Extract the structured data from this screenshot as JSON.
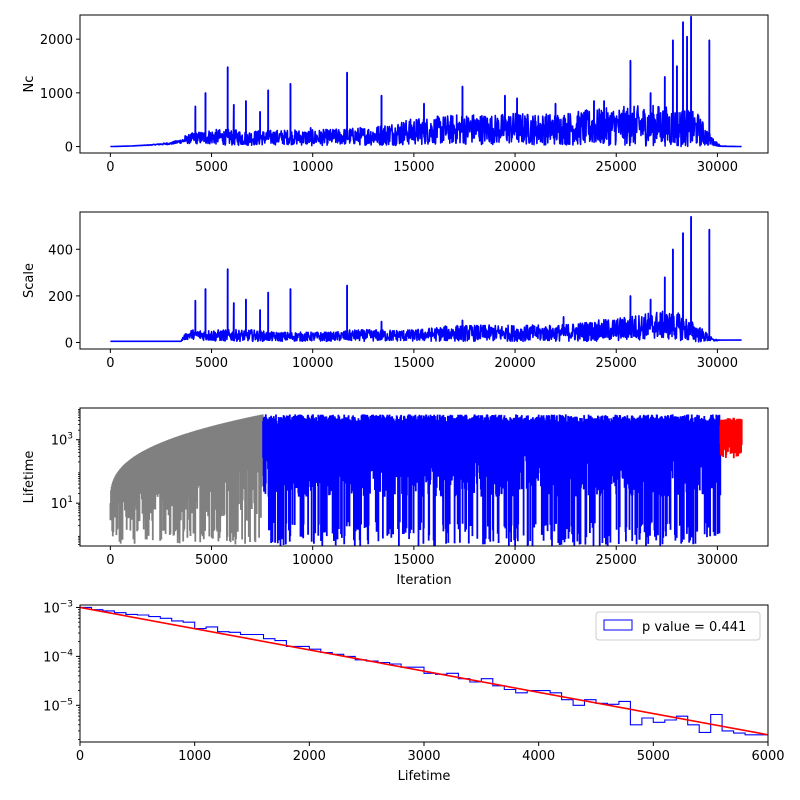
{
  "colors": {
    "series_main": "#0000ff",
    "series_burnin": "#808080",
    "series_tail": "#ff0000",
    "fit_line": "#ff0000",
    "frame": "#000000",
    "background": "#ffffff"
  },
  "chart_data": [
    {
      "id": "nc",
      "type": "line",
      "title": "",
      "xlabel": "",
      "ylabel": "Nc",
      "xlim": [
        -1500,
        32500
      ],
      "ylim": [
        -120,
        2450
      ],
      "xticks": [
        0,
        5000,
        10000,
        15000,
        20000,
        25000,
        30000
      ],
      "xtick_labels": [
        "0",
        "5000",
        "10000",
        "15000",
        "20000",
        "25000",
        "30000"
      ],
      "yticks": [
        0,
        1000,
        2000
      ],
      "ytick_labels": [
        "0",
        "1000",
        "2000"
      ],
      "grid": false,
      "series": [
        {
          "color": "#0000ff",
          "x": [
            0,
            1000,
            2000,
            3000,
            3500,
            4000,
            5000,
            6000,
            7000,
            8000,
            9000,
            10000,
            11000,
            12000,
            13000,
            14000,
            15000,
            16000,
            17000,
            18000,
            19000,
            20000,
            21000,
            22000,
            23000,
            24000,
            25000,
            26000,
            27000,
            28000,
            29000,
            29800,
            30200,
            31200
          ],
          "y": [
            0,
            10,
            30,
            60,
            100,
            150,
            180,
            170,
            160,
            170,
            175,
            160,
            180,
            190,
            200,
            240,
            280,
            300,
            320,
            330,
            320,
            340,
            320,
            330,
            340,
            360,
            380,
            380,
            400,
            350,
            320,
            80,
            5,
            0
          ],
          "noise_band": [
            0,
            0,
            5,
            20,
            40,
            100,
            140,
            150,
            140,
            140,
            140,
            150,
            150,
            160,
            180,
            220,
            250,
            260,
            280,
            290,
            280,
            300,
            290,
            300,
            320,
            340,
            360,
            380,
            380,
            360,
            320,
            60,
            5,
            0
          ]
        }
      ],
      "spikes": [
        {
          "x": 3700,
          "y": 200
        },
        {
          "x": 4200,
          "y": 750
        },
        {
          "x": 4700,
          "y": 1000
        },
        {
          "x": 5800,
          "y": 1480
        },
        {
          "x": 6100,
          "y": 780
        },
        {
          "x": 6700,
          "y": 850
        },
        {
          "x": 7400,
          "y": 650
        },
        {
          "x": 7800,
          "y": 1050
        },
        {
          "x": 8900,
          "y": 1170
        },
        {
          "x": 9900,
          "y": 350
        },
        {
          "x": 11700,
          "y": 1380
        },
        {
          "x": 13400,
          "y": 950
        },
        {
          "x": 15500,
          "y": 800
        },
        {
          "x": 17400,
          "y": 1120
        },
        {
          "x": 19500,
          "y": 950
        },
        {
          "x": 20100,
          "y": 900
        },
        {
          "x": 22000,
          "y": 800
        },
        {
          "x": 23900,
          "y": 850
        },
        {
          "x": 24400,
          "y": 850
        },
        {
          "x": 25700,
          "y": 1600
        },
        {
          "x": 26700,
          "y": 1000
        },
        {
          "x": 27400,
          "y": 1300
        },
        {
          "x": 27800,
          "y": 1980
        },
        {
          "x": 28000,
          "y": 1500
        },
        {
          "x": 28300,
          "y": 2320
        },
        {
          "x": 28500,
          "y": 2050
        },
        {
          "x": 28700,
          "y": 2420
        },
        {
          "x": 29600,
          "y": 1980
        }
      ]
    },
    {
      "id": "scale",
      "type": "line",
      "title": "",
      "xlabel": "",
      "ylabel": "Scale",
      "xlim": [
        -1500,
        32500
      ],
      "ylim": [
        -28,
        560
      ],
      "xticks": [
        0,
        5000,
        10000,
        15000,
        20000,
        25000,
        30000
      ],
      "xtick_labels": [
        "0",
        "5000",
        "10000",
        "15000",
        "20000",
        "25000",
        "30000"
      ],
      "yticks": [
        0,
        200,
        400
      ],
      "ytick_labels": [
        "0",
        "200",
        "400"
      ],
      "grid": false,
      "series": [
        {
          "color": "#0000ff",
          "x": [
            0,
            3500,
            3600,
            4000,
            5000,
            6000,
            7000,
            8000,
            9000,
            10000,
            11000,
            12000,
            13000,
            14000,
            15000,
            16000,
            17000,
            18000,
            19000,
            20000,
            21000,
            22000,
            23000,
            24000,
            25000,
            26000,
            27000,
            28000,
            29000,
            29800,
            30200,
            31200
          ],
          "y": [
            5,
            5,
            20,
            35,
            30,
            30,
            30,
            25,
            25,
            25,
            25,
            30,
            30,
            30,
            30,
            35,
            40,
            40,
            40,
            40,
            40,
            40,
            45,
            50,
            55,
            65,
            75,
            70,
            40,
            10,
            10,
            10
          ],
          "noise_band": [
            0,
            0,
            10,
            20,
            25,
            25,
            25,
            20,
            20,
            20,
            20,
            25,
            25,
            25,
            25,
            30,
            35,
            35,
            35,
            35,
            35,
            35,
            40,
            45,
            50,
            55,
            60,
            60,
            40,
            5,
            0,
            0
          ]
        }
      ],
      "spikes": [
        {
          "x": 4200,
          "y": 180
        },
        {
          "x": 4700,
          "y": 230
        },
        {
          "x": 5800,
          "y": 315
        },
        {
          "x": 6100,
          "y": 170
        },
        {
          "x": 6700,
          "y": 185
        },
        {
          "x": 7400,
          "y": 140
        },
        {
          "x": 7800,
          "y": 215
        },
        {
          "x": 8900,
          "y": 230
        },
        {
          "x": 11700,
          "y": 245
        },
        {
          "x": 13400,
          "y": 90
        },
        {
          "x": 17400,
          "y": 95
        },
        {
          "x": 22400,
          "y": 110
        },
        {
          "x": 25700,
          "y": 200
        },
        {
          "x": 26700,
          "y": 185
        },
        {
          "x": 27400,
          "y": 280
        },
        {
          "x": 27800,
          "y": 400
        },
        {
          "x": 28300,
          "y": 470
        },
        {
          "x": 28700,
          "y": 540
        },
        {
          "x": 29600,
          "y": 485
        }
      ]
    },
    {
      "id": "lifetime",
      "type": "line",
      "title": "",
      "xlabel": "Iteration",
      "ylabel": "Lifetime",
      "xlim": [
        -1500,
        32500
      ],
      "ylim_log10": [
        -0.35,
        4.0
      ],
      "yscale": "log",
      "xticks": [
        0,
        5000,
        10000,
        15000,
        20000,
        25000,
        30000
      ],
      "xtick_labels": [
        "0",
        "5000",
        "10000",
        "15000",
        "20000",
        "25000",
        "30000"
      ],
      "yticks_log10": [
        1,
        3
      ],
      "ytick_base": "10",
      "ytick_exponents": [
        "1",
        "3"
      ],
      "grid": false,
      "series": [
        {
          "color": "#808080",
          "segment": "burn-in",
          "x_start": 0,
          "x_end": 7550,
          "upper_log10_start": 1.0,
          "upper_log10_end": 3.8
        },
        {
          "color": "#0000ff",
          "segment": "main",
          "x_start": 7550,
          "x_end": 30150,
          "upper_log10": 3.8,
          "lower_log10": 0.0
        },
        {
          "color": "#ff0000",
          "segment": "tail",
          "x_start": 30150,
          "x_end": 31200,
          "upper_log10": 3.7,
          "lower_log10": 2.4
        }
      ]
    },
    {
      "id": "lifetime-hist",
      "type": "histogram",
      "title": "",
      "xlabel": "Lifetime",
      "ylabel": "",
      "xlim": [
        0,
        6000
      ],
      "ylim_log10": [
        -5.75,
        -2.95
      ],
      "yscale": "log",
      "xticks": [
        0,
        1000,
        2000,
        3000,
        4000,
        5000,
        6000
      ],
      "xtick_labels": [
        "0",
        "1000",
        "2000",
        "3000",
        "4000",
        "5000",
        "6000"
      ],
      "yticks_log10": [
        -5,
        -4,
        -3
      ],
      "ytick_base": "10",
      "ytick_exponents": [
        "−5",
        "−4",
        "−3"
      ],
      "legend": {
        "label": "p value = 0.441",
        "position": "top-right"
      },
      "grid": false,
      "bin_width": 100,
      "bin_start": 0,
      "hist_color": "#0000ff",
      "values": [
        0.001,
        0.0009,
        0.00085,
        0.00078,
        0.00072,
        0.0007,
        0.00065,
        0.0006,
        0.00053,
        0.0005,
        0.00037,
        0.0004,
        0.00032,
        0.00031,
        0.00028,
        0.00028,
        0.00023,
        0.00021,
        0.00016,
        0.00016,
        0.00014,
        0.00012,
        0.00011,
        0.0001,
        8.5e-05,
        8e-05,
        7.5e-05,
        7e-05,
        6e-05,
        6e-05,
        4.5e-05,
        4.3e-05,
        4.5e-05,
        3.5e-05,
        3e-05,
        3.5e-05,
        2.5e-05,
        2.1e-05,
        1.8e-05,
        2e-05,
        2e-05,
        1.8e-05,
        1.3e-05,
        1e-05,
        1.3e-05,
        1.1e-05,
        1.05e-05,
        1.2e-05,
        4e-06,
        5.5e-06,
        4.5e-06,
        5e-06,
        6e-06,
        4e-06,
        2.8e-06,
        6.5e-06,
        3e-06,
        2.7e-06,
        2.5e-06,
        2.5e-06
      ],
      "fit": {
        "color": "#ff0000",
        "x": [
          0,
          6000
        ],
        "y": [
          0.001,
          2.5e-06
        ]
      }
    }
  ]
}
